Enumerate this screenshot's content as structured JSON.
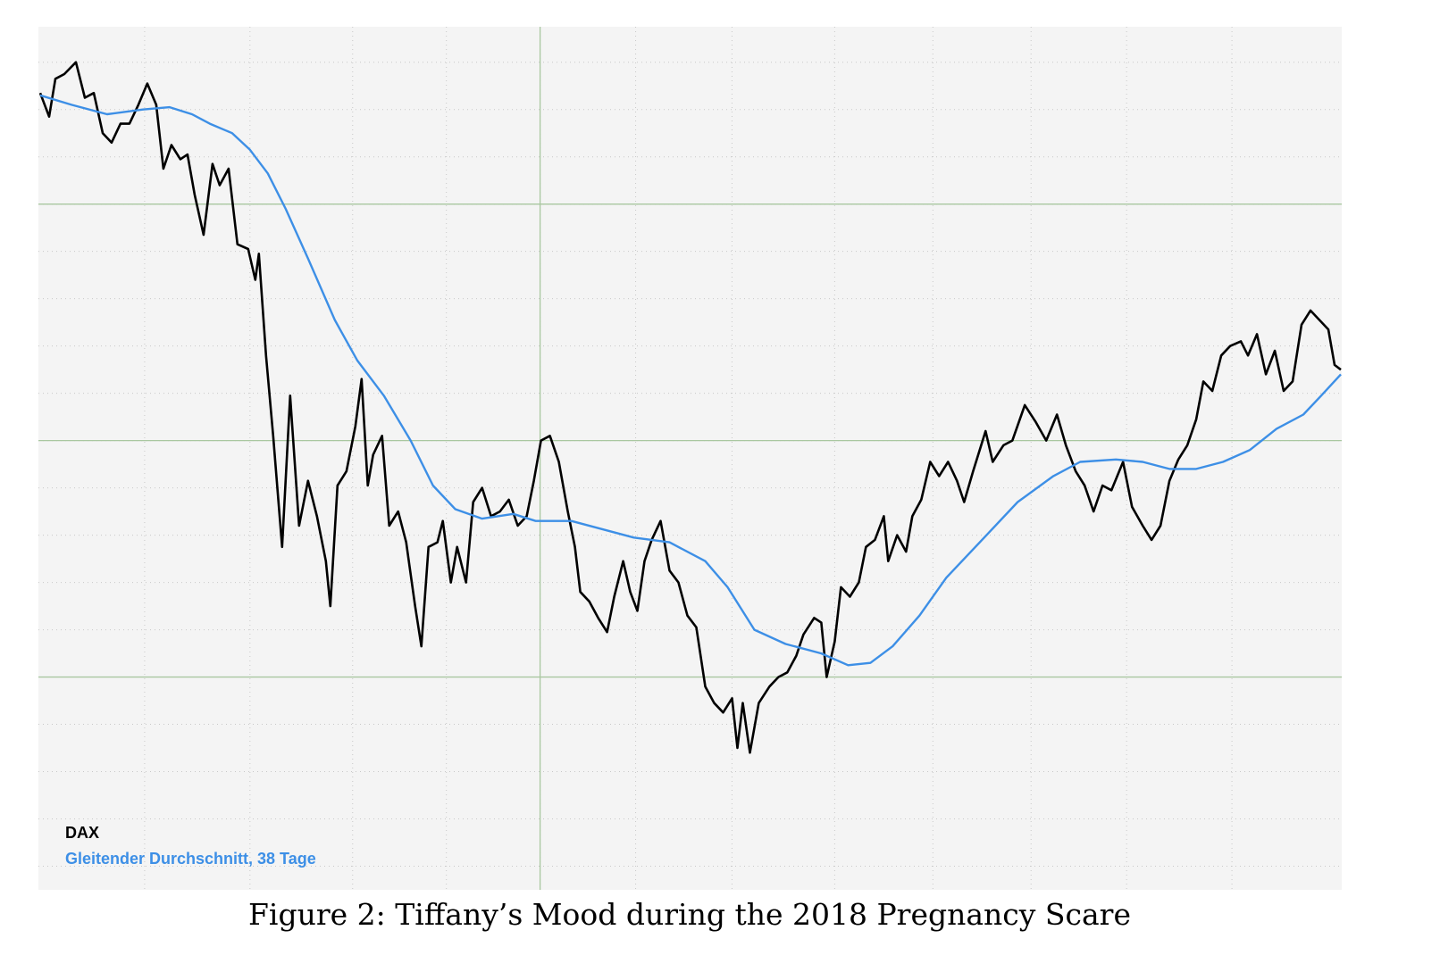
{
  "chart_data": {
    "type": "line",
    "title": "Figure 2: Tiffany’s Mood during the 2018 Pregnancy Scare",
    "xlim": [
      0,
      146
    ],
    "ylim": [
      1,
      37.5
    ],
    "xticks": [
      11.9,
      23.7,
      35.2,
      45.7,
      56.2,
      66.9,
      77.7,
      89.2,
      100.2,
      111.2,
      121.9,
      133.7
    ],
    "major_xticks": [
      56.2
    ],
    "yticks": [
      2,
      4,
      6,
      8,
      10,
      12,
      14,
      16,
      18,
      20,
      22,
      24,
      26,
      28,
      30,
      32,
      34,
      36
    ],
    "major_yticks": [
      10,
      20,
      30
    ],
    "grid": true,
    "legend": "lower left",
    "series": [
      {
        "name": "DAX",
        "color": "#000000",
        "x": [
          0.2,
          1.2,
          1.9,
          2.9,
          4.2,
          5.2,
          6.2,
          7.2,
          8.2,
          9.2,
          10.2,
          11.2,
          12.2,
          13.2,
          14,
          14.9,
          15.9,
          16.7,
          17.5,
          18.5,
          19.5,
          20.3,
          21.3,
          22.3,
          23.5,
          24.3,
          24.7,
          25.5,
          26.3,
          27.3,
          28.2,
          29.2,
          30.2,
          31.2,
          32.2,
          32.7,
          33.5,
          34.5,
          35.5,
          36.2,
          36.9,
          37.5,
          38.5,
          39.3,
          40.3,
          41.2,
          42.2,
          42.9,
          43.7,
          44.7,
          45.3,
          46.2,
          46.9,
          47.9,
          48.7,
          49.7,
          50.7,
          51.7,
          52.7,
          53.7,
          54.7,
          55.5,
          56.3,
          57.3,
          58.3,
          59.3,
          60.1,
          60.7,
          61.7,
          62.7,
          63.7,
          64.5,
          65.5,
          66.3,
          67.1,
          67.9,
          68.7,
          69.7,
          70.7,
          71.7,
          72.7,
          73.7,
          74.7,
          75.7,
          76.7,
          77.7,
          78.3,
          78.9,
          79.7,
          80.7,
          81.9,
          82.9,
          83.9,
          84.9,
          85.7,
          86.9,
          87.7,
          88.3,
          89.2,
          89.9,
          90.9,
          91.9,
          92.7,
          93.7,
          94.7,
          95.2,
          96.2,
          97.2,
          97.9,
          98.9,
          99.9,
          100.9,
          101.9,
          102.9,
          103.7,
          104.7,
          106.1,
          106.9,
          108.1,
          109.1,
          110.5,
          111.7,
          112.9,
          114.1,
          115.1,
          116.2,
          117.2,
          118.2,
          119.2,
          120.2,
          121.5,
          122.5,
          123.7,
          124.7,
          125.7,
          126.7,
          127.7,
          128.7,
          129.7,
          130.5,
          131.5,
          132.5,
          133.5,
          134.7,
          135.5,
          136.5,
          137.5,
          138.5,
          139.5,
          140.5,
          141.5,
          142.5,
          143.5,
          144.5,
          145.2,
          145.9
        ],
        "values": [
          34.7,
          33.7,
          35.3,
          35.5,
          36.0,
          34.5,
          34.7,
          33.0,
          32.6,
          33.4,
          33.4,
          34.2,
          35.1,
          34.2,
          31.5,
          32.5,
          31.9,
          32.1,
          30.4,
          28.7,
          31.7,
          30.8,
          31.5,
          28.3,
          28.1,
          26.8,
          27.9,
          23.6,
          20.2,
          15.5,
          21.9,
          16.4,
          18.3,
          16.8,
          14.9,
          13.0,
          18.1,
          18.7,
          20.6,
          22.6,
          18.1,
          19.4,
          20.2,
          16.4,
          17.0,
          15.7,
          13.0,
          11.3,
          15.5,
          15.7,
          16.6,
          14.0,
          15.5,
          14.0,
          17.4,
          18.0,
          16.8,
          17.0,
          17.5,
          16.4,
          16.8,
          18.3,
          20.0,
          20.2,
          19.1,
          17.0,
          15.5,
          13.6,
          13.2,
          12.5,
          11.9,
          13.4,
          14.9,
          13.6,
          12.8,
          14.9,
          15.8,
          16.6,
          14.5,
          14.0,
          12.6,
          12.1,
          9.6,
          8.9,
          8.5,
          9.1,
          7.0,
          8.9,
          6.8,
          8.9,
          9.6,
          10.0,
          10.2,
          10.9,
          11.8,
          12.5,
          12.3,
          10.0,
          11.5,
          13.8,
          13.4,
          14.0,
          15.5,
          15.8,
          16.8,
          14.9,
          16.0,
          15.3,
          16.8,
          17.5,
          19.1,
          18.5,
          19.1,
          18.3,
          17.4,
          18.7,
          20.4,
          19.1,
          19.8,
          20.0,
          21.5,
          20.8,
          20.0,
          21.1,
          19.8,
          18.7,
          18.1,
          17.0,
          18.1,
          17.9,
          19.1,
          17.2,
          16.4,
          15.8,
          16.4,
          18.3,
          19.2,
          19.8,
          20.9,
          22.5,
          22.1,
          23.6,
          24.0,
          24.2,
          23.6,
          24.5,
          22.8,
          23.8,
          22.1,
          22.5,
          24.9,
          25.5,
          25.1,
          24.7,
          23.2,
          23.0
        ]
      },
      {
        "name": "Gleitender Durchschnitt, 38 Tage",
        "color": "#3d8fe6",
        "x": [
          0.2,
          3.7,
          7.7,
          11.7,
          14.7,
          17.2,
          19.2,
          21.7,
          23.7,
          25.7,
          27.7,
          30.2,
          33.2,
          35.7,
          38.7,
          41.7,
          44.2,
          46.7,
          49.7,
          53.2,
          55.7,
          59.7,
          62.7,
          66.7,
          70.7,
          74.7,
          77.2,
          80.2,
          83.7,
          87.7,
          90.7,
          93.2,
          95.7,
          98.7,
          101.7,
          105.7,
          109.7,
          113.7,
          116.7,
          120.7,
          123.7,
          126.7,
          129.7,
          132.7,
          135.7,
          138.7,
          141.7,
          143.7,
          145.9
        ],
        "values": [
          34.6,
          34.2,
          33.8,
          34.0,
          34.1,
          33.8,
          33.4,
          33.0,
          32.3,
          31.3,
          29.8,
          27.7,
          25.1,
          23.4,
          21.9,
          20.0,
          18.1,
          17.1,
          16.7,
          16.9,
          16.6,
          16.6,
          16.3,
          15.9,
          15.7,
          14.9,
          13.8,
          12.0,
          11.4,
          11.0,
          10.5,
          10.6,
          11.3,
          12.6,
          14.2,
          15.8,
          17.4,
          18.5,
          19.1,
          19.2,
          19.1,
          18.8,
          18.8,
          19.1,
          19.6,
          20.5,
          21.1,
          21.9,
          22.8
        ]
      }
    ]
  }
}
